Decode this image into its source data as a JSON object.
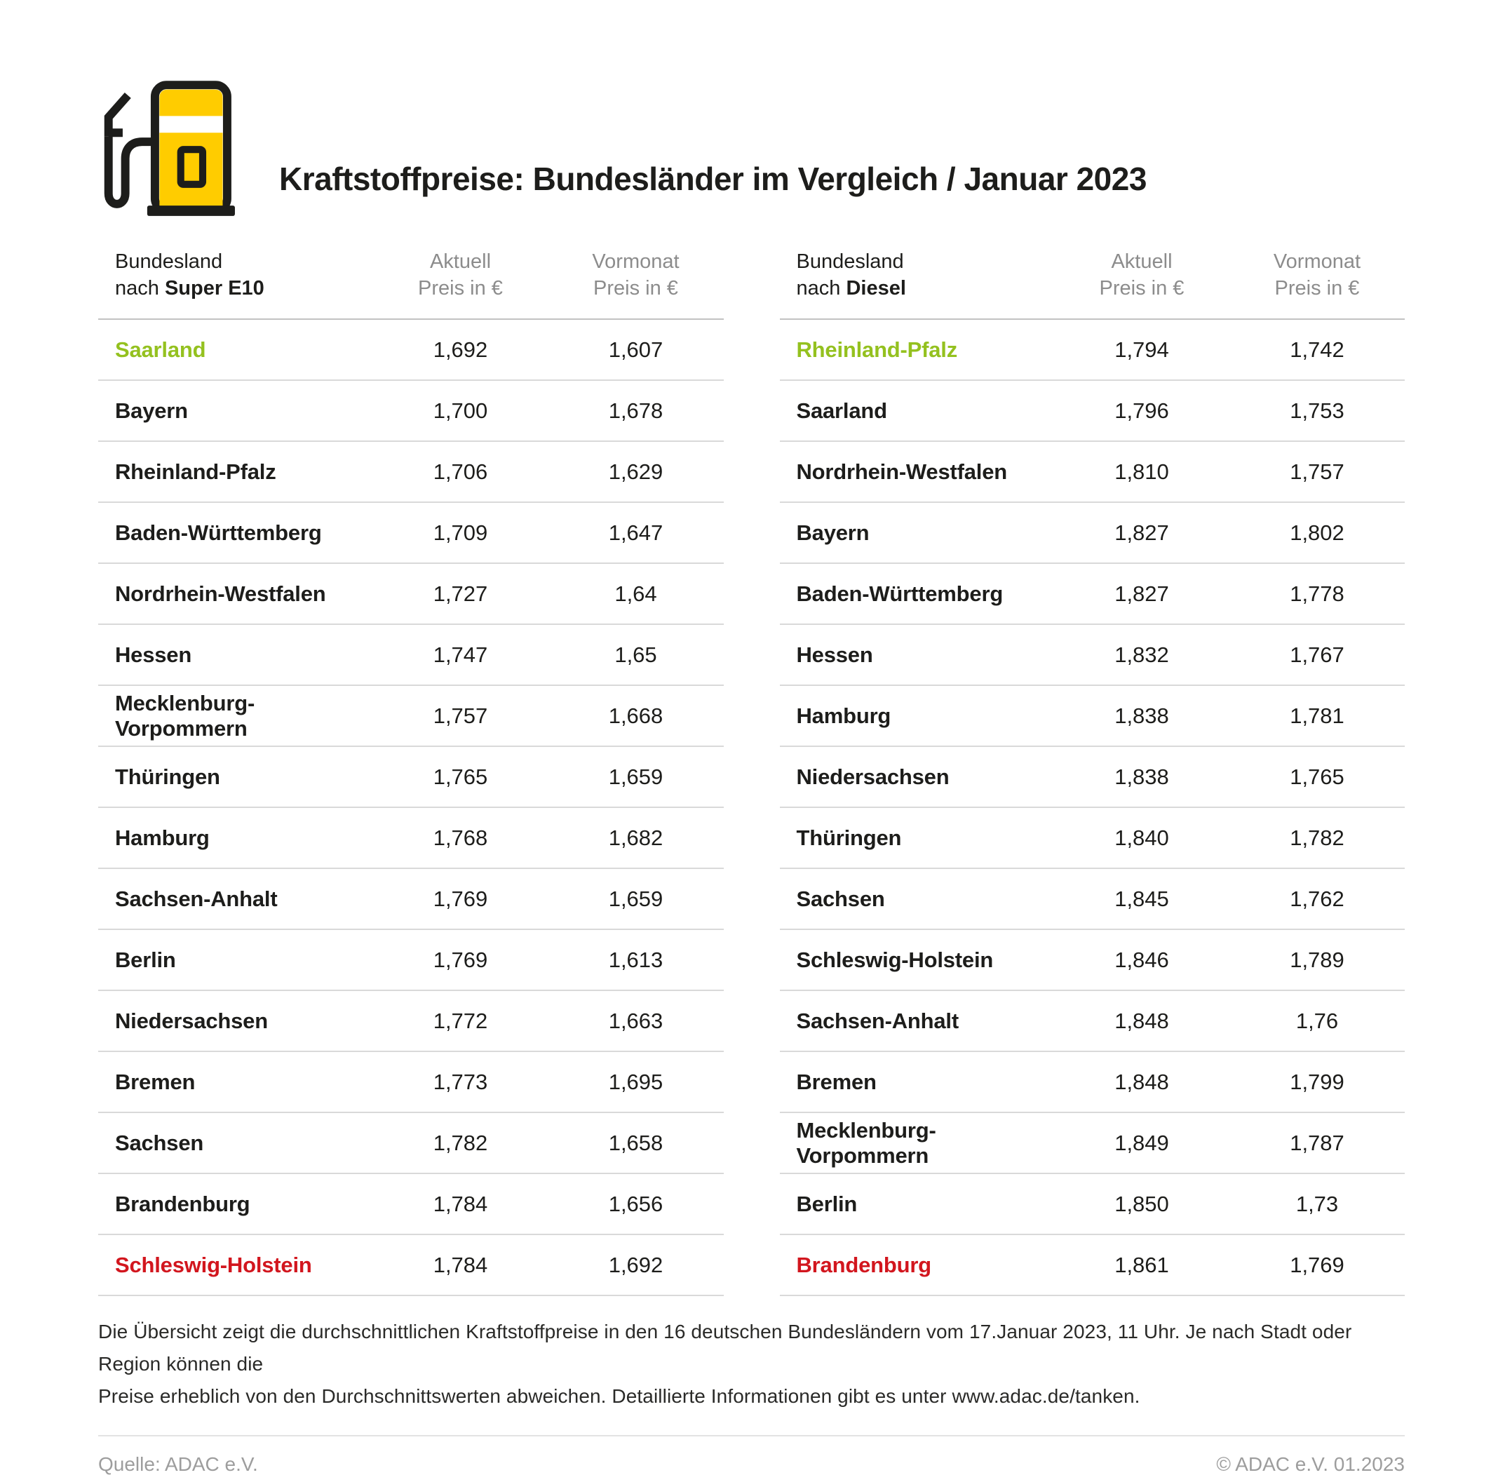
{
  "title": "Kraftstoffpreise: Bundesländer im Vergleich / Januar 2023",
  "colors": {
    "brand_yellow": "#FFCC00",
    "outline_black": "#1D1D1B",
    "cheapest_green": "#94C11F",
    "most_expensive_red": "#D2161E",
    "header_gray": "#8C8C8C",
    "footer_gray": "#9D9D9D"
  },
  "icon": "fuel-pump-icon",
  "tables": [
    {
      "id": "super-e10",
      "label_line1": "Bundesland",
      "label_prefix": "nach ",
      "fuel": "Super E10",
      "col_aktuell_line1": "Aktuell",
      "col_aktuell_line2": "Preis in €",
      "col_vormonat_line1": "Vormonat",
      "col_vormonat_line2": "Preis in €",
      "rows": [
        {
          "state": "Saarland",
          "aktuell": "1,692",
          "vormonat": "1,607",
          "highlight": "best"
        },
        {
          "state": "Bayern",
          "aktuell": "1,700",
          "vormonat": "1,678"
        },
        {
          "state": "Rheinland-Pfalz",
          "aktuell": "1,706",
          "vormonat": "1,629"
        },
        {
          "state": "Baden-Württemberg",
          "aktuell": "1,709",
          "vormonat": "1,647"
        },
        {
          "state": "Nordrhein-Westfalen",
          "aktuell": "1,727",
          "vormonat": "1,64"
        },
        {
          "state": "Hessen",
          "aktuell": "1,747",
          "vormonat": "1,65"
        },
        {
          "state": "Mecklenburg-Vorpommern",
          "aktuell": "1,757",
          "vormonat": "1,668"
        },
        {
          "state": "Thüringen",
          "aktuell": "1,765",
          "vormonat": "1,659"
        },
        {
          "state": "Hamburg",
          "aktuell": "1,768",
          "vormonat": "1,682"
        },
        {
          "state": "Sachsen-Anhalt",
          "aktuell": "1,769",
          "vormonat": "1,659"
        },
        {
          "state": "Berlin",
          "aktuell": "1,769",
          "vormonat": "1,613"
        },
        {
          "state": "Niedersachsen",
          "aktuell": "1,772",
          "vormonat": "1,663"
        },
        {
          "state": "Bremen",
          "aktuell": "1,773",
          "vormonat": "1,695"
        },
        {
          "state": "Sachsen",
          "aktuell": "1,782",
          "vormonat": "1,658"
        },
        {
          "state": "Brandenburg",
          "aktuell": "1,784",
          "vormonat": "1,656"
        },
        {
          "state": "Schleswig-Holstein",
          "aktuell": "1,784",
          "vormonat": "1,692",
          "highlight": "worst"
        }
      ]
    },
    {
      "id": "diesel",
      "label_line1": "Bundesland",
      "label_prefix": "nach ",
      "fuel": "Diesel",
      "col_aktuell_line1": "Aktuell",
      "col_aktuell_line2": "Preis in €",
      "col_vormonat_line1": "Vormonat",
      "col_vormonat_line2": "Preis in €",
      "rows": [
        {
          "state": "Rheinland-Pfalz",
          "aktuell": "1,794",
          "vormonat": "1,742",
          "highlight": "best"
        },
        {
          "state": "Saarland",
          "aktuell": "1,796",
          "vormonat": "1,753"
        },
        {
          "state": "Nordrhein-Westfalen",
          "aktuell": "1,810",
          "vormonat": "1,757"
        },
        {
          "state": "Bayern",
          "aktuell": "1,827",
          "vormonat": "1,802"
        },
        {
          "state": "Baden-Württemberg",
          "aktuell": "1,827",
          "vormonat": "1,778"
        },
        {
          "state": "Hessen",
          "aktuell": "1,832",
          "vormonat": "1,767"
        },
        {
          "state": "Hamburg",
          "aktuell": "1,838",
          "vormonat": "1,781"
        },
        {
          "state": "Niedersachsen",
          "aktuell": "1,838",
          "vormonat": "1,765"
        },
        {
          "state": "Thüringen",
          "aktuell": "1,840",
          "vormonat": "1,782"
        },
        {
          "state": "Sachsen",
          "aktuell": "1,845",
          "vormonat": "1,762"
        },
        {
          "state": "Schleswig-Holstein",
          "aktuell": "1,846",
          "vormonat": "1,789"
        },
        {
          "state": "Sachsen-Anhalt",
          "aktuell": "1,848",
          "vormonat": "1,76"
        },
        {
          "state": "Bremen",
          "aktuell": "1,848",
          "vormonat": "1,799"
        },
        {
          "state": "Mecklenburg-Vorpommern",
          "aktuell": "1,849",
          "vormonat": "1,787"
        },
        {
          "state": "Berlin",
          "aktuell": "1,850",
          "vormonat": "1,73"
        },
        {
          "state": "Brandenburg",
          "aktuell": "1,861",
          "vormonat": "1,769",
          "highlight": "worst"
        }
      ]
    }
  ],
  "footnote": {
    "line1": "Die Übersicht zeigt die durchschnittlichen Kraftstoffpreise in den 16 deutschen Bundesländern vom 17.Januar 2023, 11 Uhr. Je nach Stadt oder Region können die",
    "line2": "Preise erheblich von den Durchschnittswerten abweichen. Detaillierte Informationen gibt es unter www.adac.de/tanken."
  },
  "footer": {
    "source": "Quelle: ADAC e.V.",
    "copyright": "© ADAC e.V. 01.2023"
  },
  "chart_data": [
    {
      "type": "table",
      "title": "Bundesland nach Super E10 — Preis in €",
      "columns": [
        "Bundesland",
        "Aktuell Preis in €",
        "Vormonat Preis in €"
      ],
      "categories": [
        "Saarland",
        "Bayern",
        "Rheinland-Pfalz",
        "Baden-Württemberg",
        "Nordrhein-Westfalen",
        "Hessen",
        "Mecklenburg-Vorpommern",
        "Thüringen",
        "Hamburg",
        "Sachsen-Anhalt",
        "Berlin",
        "Niedersachsen",
        "Bremen",
        "Sachsen",
        "Brandenburg",
        "Schleswig-Holstein"
      ],
      "series": [
        {
          "name": "Aktuell",
          "values": [
            1.692,
            1.7,
            1.706,
            1.709,
            1.727,
            1.747,
            1.757,
            1.765,
            1.768,
            1.769,
            1.769,
            1.772,
            1.773,
            1.782,
            1.784,
            1.784
          ]
        },
        {
          "name": "Vormonat",
          "values": [
            1.607,
            1.678,
            1.629,
            1.647,
            1.64,
            1.65,
            1.668,
            1.659,
            1.682,
            1.659,
            1.613,
            1.663,
            1.695,
            1.658,
            1.656,
            1.692
          ]
        }
      ]
    },
    {
      "type": "table",
      "title": "Bundesland nach Diesel — Preis in €",
      "columns": [
        "Bundesland",
        "Aktuell Preis in €",
        "Vormonat Preis in €"
      ],
      "categories": [
        "Rheinland-Pfalz",
        "Saarland",
        "Nordrhein-Westfalen",
        "Bayern",
        "Baden-Württemberg",
        "Hessen",
        "Hamburg",
        "Niedersachsen",
        "Thüringen",
        "Sachsen",
        "Schleswig-Holstein",
        "Sachsen-Anhalt",
        "Bremen",
        "Mecklenburg-Vorpommern",
        "Berlin",
        "Brandenburg"
      ],
      "series": [
        {
          "name": "Aktuell",
          "values": [
            1.794,
            1.796,
            1.81,
            1.827,
            1.827,
            1.832,
            1.838,
            1.838,
            1.84,
            1.845,
            1.846,
            1.848,
            1.848,
            1.849,
            1.85,
            1.861
          ]
        },
        {
          "name": "Vormonat",
          "values": [
            1.742,
            1.753,
            1.757,
            1.802,
            1.778,
            1.767,
            1.781,
            1.765,
            1.782,
            1.762,
            1.789,
            1.76,
            1.799,
            1.787,
            1.73,
            1.769
          ]
        }
      ]
    }
  ]
}
